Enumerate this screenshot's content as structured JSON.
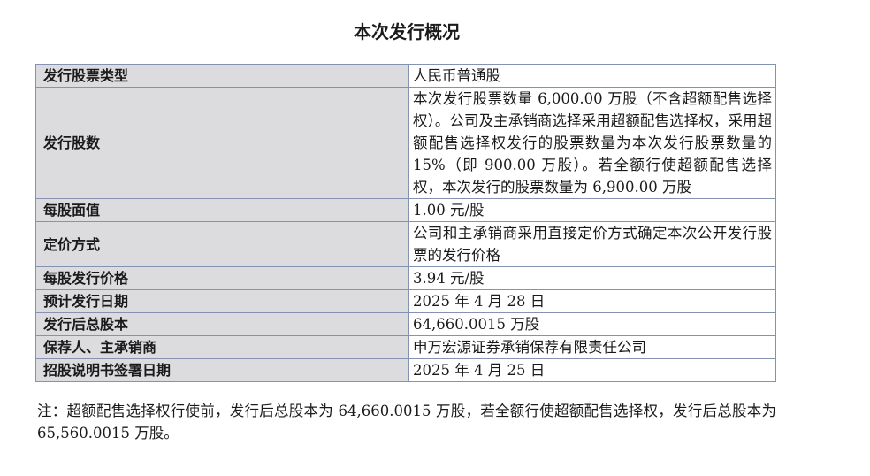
{
  "title": "本次发行概况",
  "rows": [
    {
      "label": "发行股票类型",
      "value": "人民币普通股"
    },
    {
      "label": "发行股数",
      "value": "本次发行股票数量 6,000.00 万股（不含超额配售选择权）。公司及主承销商选择采用超额配售选择权，采用超额配售选择权发行的股票数量为本次发行股票数量的 15%（即 900.00 万股）。若全额行使超额配售选择权，本次发行的股票数量为 6,900.00 万股"
    },
    {
      "label": "每股面值",
      "value": "1.00 元/股"
    },
    {
      "label": "定价方式",
      "value": "公司和主承销商采用直接定价方式确定本次公开发行股票的发行价格"
    },
    {
      "label": "每股发行价格",
      "value": "3.94 元/股"
    },
    {
      "label": "预计发行日期",
      "value": "2025 年 4 月 28 日"
    },
    {
      "label": "发行后总股本",
      "value": "64,660.0015 万股"
    },
    {
      "label": "保荐人、主承销商",
      "value": "申万宏源证券承销保荐有限责任公司"
    },
    {
      "label": "招股说明书签署日期",
      "value": "2025 年 4 月 25 日"
    }
  ],
  "note": "注：超额配售选择权行使前，发行后总股本为 64,660.0015 万股，若全额行使超额配售选择权，发行后总股本为 65,560.0015 万股。"
}
